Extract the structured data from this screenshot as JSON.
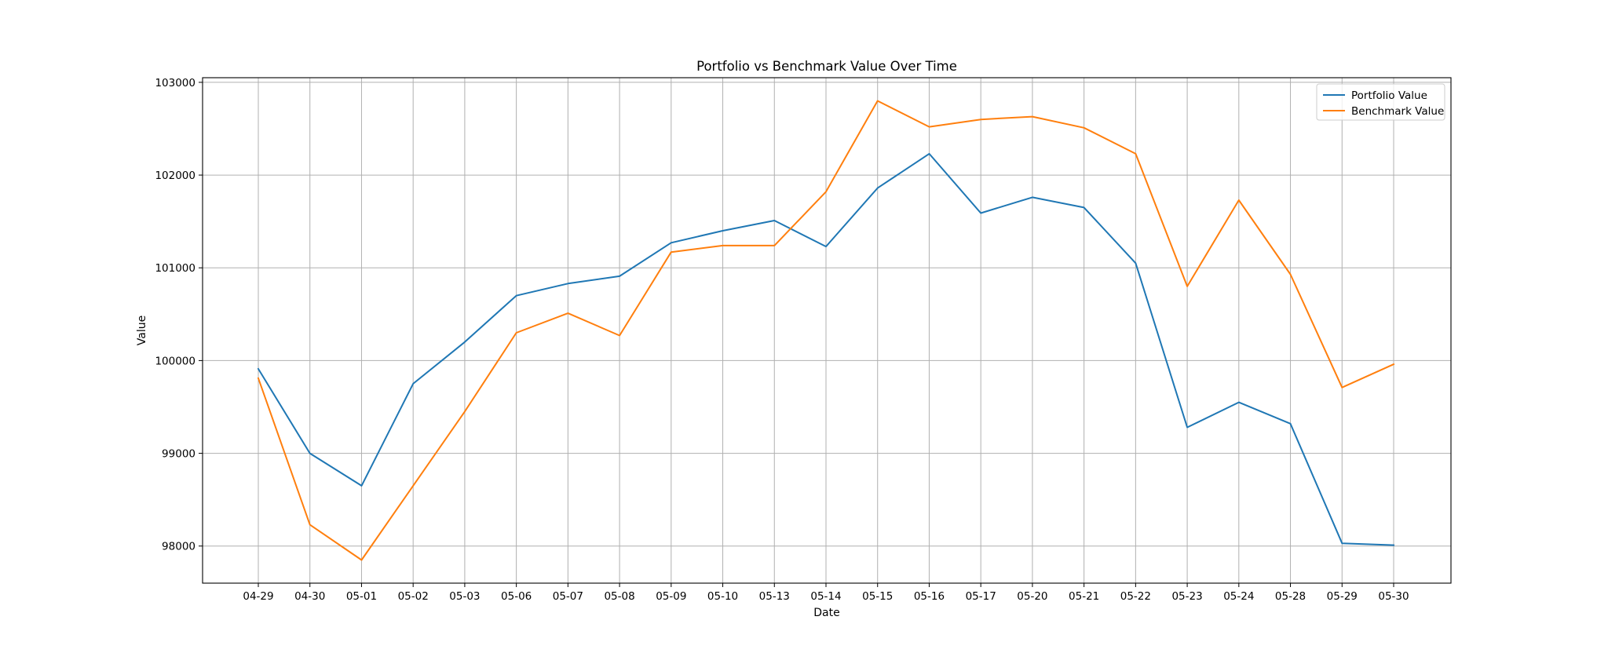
{
  "chart_data": {
    "type": "line",
    "title": "Portfolio vs Benchmark Value Over Time",
    "xlabel": "Date",
    "ylabel": "Value",
    "grid": true,
    "legend_position": "top-right",
    "ylim": [
      97600,
      103050
    ],
    "yticks": [
      98000,
      99000,
      100000,
      101000,
      102000,
      103000
    ],
    "categories": [
      "04-29",
      "04-30",
      "05-01",
      "05-02",
      "05-03",
      "05-06",
      "05-07",
      "05-08",
      "05-09",
      "05-10",
      "05-13",
      "05-14",
      "05-15",
      "05-16",
      "05-17",
      "05-20",
      "05-21",
      "05-22",
      "05-23",
      "05-24",
      "05-28",
      "05-29",
      "05-30"
    ],
    "series": [
      {
        "name": "Portfolio Value",
        "color": "#1f77b4",
        "values": [
          99910,
          99000,
          98650,
          99750,
          100200,
          100700,
          100830,
          100910,
          101270,
          101400,
          101510,
          101230,
          101860,
          102230,
          101590,
          101760,
          101650,
          101050,
          99280,
          99550,
          99320,
          98030,
          98010
        ]
      },
      {
        "name": "Benchmark Value",
        "color": "#ff7f0e",
        "values": [
          99810,
          98230,
          97850,
          98650,
          99450,
          100300,
          100510,
          100270,
          101170,
          101240,
          101240,
          101820,
          102800,
          102520,
          102600,
          102630,
          102510,
          102230,
          100800,
          101730,
          100930,
          99710,
          99960
        ]
      }
    ]
  }
}
